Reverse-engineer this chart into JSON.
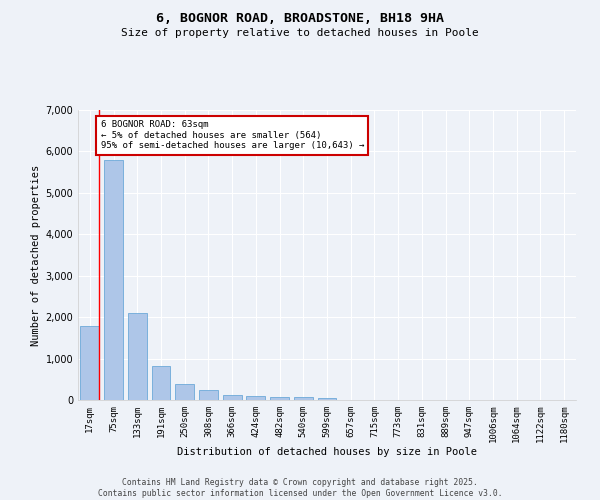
{
  "title_line1": "6, BOGNOR ROAD, BROADSTONE, BH18 9HA",
  "title_line2": "Size of property relative to detached houses in Poole",
  "xlabel": "Distribution of detached houses by size in Poole",
  "ylabel": "Number of detached properties",
  "categories": [
    "17sqm",
    "75sqm",
    "133sqm",
    "191sqm",
    "250sqm",
    "308sqm",
    "366sqm",
    "424sqm",
    "482sqm",
    "540sqm",
    "599sqm",
    "657sqm",
    "715sqm",
    "773sqm",
    "831sqm",
    "889sqm",
    "947sqm",
    "1006sqm",
    "1064sqm",
    "1122sqm",
    "1180sqm"
  ],
  "values": [
    1780,
    5800,
    2100,
    820,
    380,
    230,
    120,
    100,
    80,
    70,
    60,
    0,
    0,
    0,
    0,
    0,
    0,
    0,
    0,
    0,
    0
  ],
  "bar_color": "#aec6e8",
  "bar_edge_color": "#5a9fd4",
  "annotation_title": "6 BOGNOR ROAD: 63sqm",
  "annotation_line2": "← 5% of detached houses are smaller (564)",
  "annotation_line3": "95% of semi-detached houses are larger (10,643) →",
  "annotation_box_color": "#ffffff",
  "annotation_border_color": "#cc0000",
  "background_color": "#eef2f8",
  "grid_color": "#ffffff",
  "ylim": [
    0,
    7000
  ],
  "yticks": [
    0,
    1000,
    2000,
    3000,
    4000,
    5000,
    6000,
    7000
  ],
  "footer_line1": "Contains HM Land Registry data © Crown copyright and database right 2025.",
  "footer_line2": "Contains public sector information licensed under the Open Government Licence v3.0."
}
